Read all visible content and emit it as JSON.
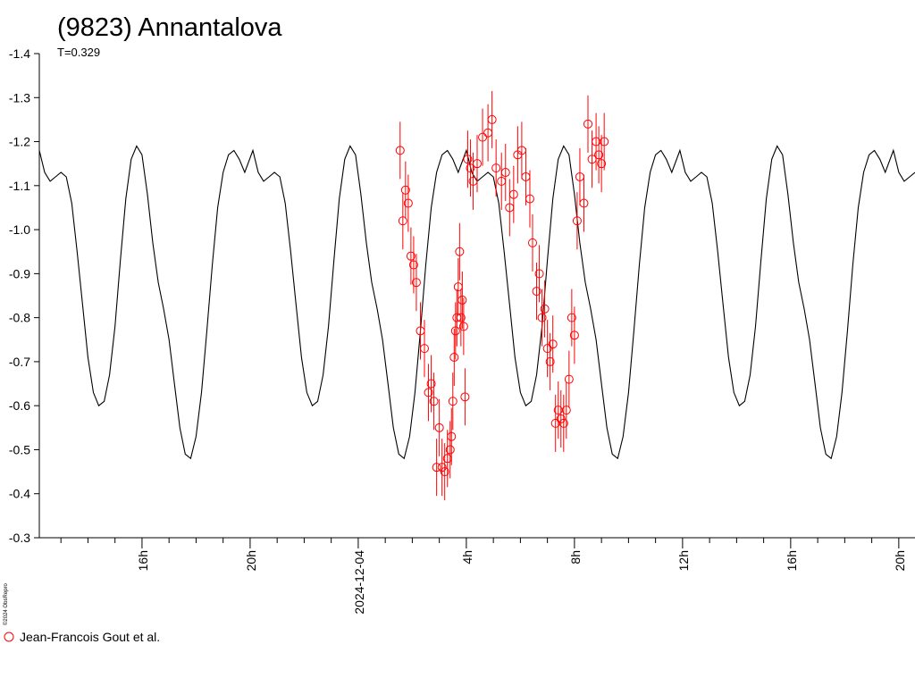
{
  "chart_data": {
    "type": "scatter",
    "title": "(9823) Annantalova",
    "subtitle": "T=0.329",
    "credit": "©2024 ObsRepro",
    "ylim": [
      -0.3,
      -1.4
    ],
    "y_ticks": [
      "-0.3",
      "-0.4",
      "-0.5",
      "-0.6",
      "-0.7",
      "-0.8",
      "-0.9",
      "-1.0",
      "-1.1",
      "-1.2",
      "-1.3",
      "-1.4"
    ],
    "y_tick_values": [
      -0.3,
      -0.4,
      -0.5,
      -0.6,
      -0.7,
      -0.8,
      -0.9,
      -1.0,
      -1.1,
      -1.2,
      -1.3,
      -1.4
    ],
    "x_range_hours": [
      12.2,
      44.6
    ],
    "x_labeled_ticks": [
      {
        "hour": 16,
        "label": "16h"
      },
      {
        "hour": 20,
        "label": "20h"
      },
      {
        "hour": 24,
        "label": "2024-12-04"
      },
      {
        "hour": 28,
        "label": "4h"
      },
      {
        "hour": 32,
        "label": "8h"
      },
      {
        "hour": 36,
        "label": "12h"
      },
      {
        "hour": 40,
        "label": "16h"
      },
      {
        "hour": 44,
        "label": "20h"
      }
    ],
    "x_minor_step_hours": 1,
    "model_curve": {
      "hours": [
        12.2,
        12.4,
        12.6,
        12.8,
        13.0,
        13.2,
        13.4,
        13.6,
        13.8,
        14.0,
        14.2,
        14.4,
        14.6,
        14.8,
        15.0,
        15.2,
        15.4,
        15.6,
        15.8,
        16.0,
        16.2,
        16.4,
        16.6,
        16.8,
        17.0,
        17.2,
        17.4,
        17.6,
        17.8,
        18.0,
        18.2,
        18.4,
        18.6,
        18.8,
        19.0,
        19.2,
        19.4,
        19.6,
        19.8,
        20.0
      ],
      "values": [
        -1.18,
        -1.13,
        -1.11,
        -1.12,
        -1.13,
        -1.12,
        -1.06,
        -0.95,
        -0.83,
        -0.71,
        -0.63,
        -0.6,
        -0.61,
        -0.67,
        -0.78,
        -0.93,
        -1.07,
        -1.16,
        -1.19,
        -1.17,
        -1.08,
        -0.97,
        -0.88,
        -0.82,
        -0.75,
        -0.65,
        -0.55,
        -0.49,
        -0.48,
        -0.53,
        -0.63,
        -0.77,
        -0.92,
        -1.05,
        -1.13,
        -1.17,
        -1.18,
        -1.16,
        -1.13,
        -1.11
      ]
    },
    "period_hours": 7.9,
    "series": [
      {
        "name": "Jean-Francois Gout et al.",
        "marker": "open-circle",
        "color": "#ff0000",
        "x_hours": [
          25.55,
          25.65,
          25.75,
          25.85,
          25.95,
          26.05,
          26.15,
          26.3,
          26.45,
          26.6,
          26.7,
          26.8,
          26.9,
          27.0,
          27.1,
          27.2,
          27.3,
          27.4,
          27.45,
          27.5,
          27.55,
          27.6,
          27.65,
          27.7,
          27.75,
          27.8,
          27.85,
          27.9,
          27.95,
          28.05,
          28.15,
          28.25,
          28.4,
          28.6,
          28.8,
          28.95,
          29.1,
          29.3,
          29.45,
          29.6,
          29.75,
          29.9,
          30.05,
          30.2,
          30.35,
          30.45,
          30.6,
          30.7,
          30.8,
          30.9,
          31.0,
          31.1,
          31.2,
          31.3,
          31.4,
          31.5,
          31.6,
          31.7,
          31.8,
          31.9,
          32.0,
          32.1,
          32.2,
          32.35,
          32.5,
          32.65,
          32.8,
          32.9,
          33.0,
          33.1
        ],
        "values": [
          -1.18,
          -1.02,
          -1.09,
          -1.06,
          -0.94,
          -0.92,
          -0.88,
          -0.77,
          -0.73,
          -0.63,
          -0.65,
          -0.61,
          -0.46,
          -0.55,
          -0.46,
          -0.45,
          -0.48,
          -0.5,
          -0.53,
          -0.61,
          -0.71,
          -0.77,
          -0.8,
          -0.87,
          -0.95,
          -0.8,
          -0.84,
          -0.78,
          -0.62,
          -1.16,
          -1.14,
          -1.11,
          -1.15,
          -1.21,
          -1.22,
          -1.25,
          -1.14,
          -1.11,
          -1.13,
          -1.05,
          -1.08,
          -1.17,
          -1.18,
          -1.12,
          -1.07,
          -0.97,
          -0.86,
          -0.9,
          -0.8,
          -0.82,
          -0.73,
          -0.7,
          -0.74,
          -0.56,
          -0.59,
          -0.57,
          -0.56,
          -0.59,
          -0.66,
          -0.8,
          -0.76,
          -1.02,
          -1.12,
          -1.06,
          -1.24,
          -1.16,
          -1.2,
          -1.17,
          -1.15,
          -1.2
        ],
        "error": 0.065
      }
    ]
  }
}
